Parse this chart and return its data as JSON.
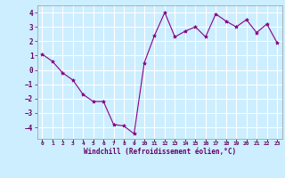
{
  "x": [
    0,
    1,
    2,
    3,
    4,
    5,
    6,
    7,
    8,
    9,
    10,
    11,
    12,
    13,
    14,
    15,
    16,
    17,
    18,
    19,
    20,
    21,
    22,
    23
  ],
  "y": [
    1.1,
    0.6,
    -0.2,
    -0.7,
    -1.7,
    -2.2,
    -2.2,
    -3.8,
    -3.9,
    -4.45,
    0.5,
    2.4,
    4.0,
    2.3,
    2.7,
    3.0,
    2.3,
    3.9,
    3.4,
    3.0,
    3.5,
    2.6,
    3.2,
    1.9
  ],
  "xlabel": "Windchill (Refroidissement éolien,°C)",
  "line_color": "#880088",
  "marker": "*",
  "marker_size": 3,
  "bg_color": "#cceeff",
  "grid_color": "#ffffff",
  "ylim": [
    -4.8,
    4.5
  ],
  "xlim": [
    -0.5,
    23.5
  ],
  "yticks": [
    -4,
    -3,
    -2,
    -1,
    0,
    1,
    2,
    3,
    4
  ],
  "xtick_labels": [
    "0",
    "1",
    "2",
    "3",
    "4",
    "5",
    "6",
    "7",
    "8",
    "9",
    "10",
    "11",
    "12",
    "13",
    "14",
    "15",
    "16",
    "17",
    "18",
    "19",
    "20",
    "21",
    "22",
    "23"
  ]
}
